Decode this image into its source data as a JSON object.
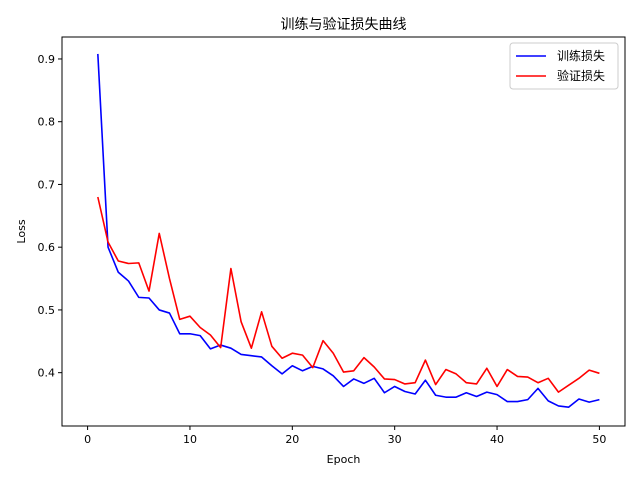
{
  "chart_data": {
    "type": "line",
    "title": "训练与验证损失曲线",
    "xlabel": "Epoch",
    "ylabel": "Loss",
    "xlim": [
      -2.5,
      52.5
    ],
    "ylim": [
      0.315,
      0.935
    ],
    "x_ticks": [
      0,
      10,
      20,
      30,
      40,
      50
    ],
    "y_ticks": [
      0.4,
      0.5,
      0.6,
      0.7,
      0.8,
      0.9
    ],
    "legend_position": "top-right",
    "grid": false,
    "x": [
      1,
      2,
      3,
      4,
      5,
      6,
      7,
      8,
      9,
      10,
      11,
      12,
      13,
      14,
      15,
      16,
      17,
      18,
      19,
      20,
      21,
      22,
      23,
      24,
      25,
      26,
      27,
      28,
      29,
      30,
      31,
      32,
      33,
      34,
      35,
      36,
      37,
      38,
      39,
      40,
      41,
      42,
      43,
      44,
      45,
      46,
      47,
      48,
      49,
      50
    ],
    "series": [
      {
        "name": "训练损失",
        "color": "#0000ff",
        "values": [
          0.908,
          0.6,
          0.56,
          0.546,
          0.52,
          0.519,
          0.5,
          0.495,
          0.462,
          0.462,
          0.459,
          0.438,
          0.444,
          0.439,
          0.429,
          0.427,
          0.425,
          0.411,
          0.398,
          0.411,
          0.403,
          0.41,
          0.406,
          0.395,
          0.378,
          0.39,
          0.383,
          0.391,
          0.368,
          0.378,
          0.37,
          0.366,
          0.388,
          0.364,
          0.361,
          0.361,
          0.368,
          0.362,
          0.369,
          0.365,
          0.354,
          0.354,
          0.357,
          0.375,
          0.355,
          0.347,
          0.345,
          0.358,
          0.353,
          0.357
        ]
      },
      {
        "name": "验证损失",
        "color": "#ff0000",
        "values": [
          0.68,
          0.608,
          0.578,
          0.574,
          0.575,
          0.53,
          0.622,
          0.55,
          0.485,
          0.49,
          0.472,
          0.46,
          0.44,
          0.566,
          0.481,
          0.439,
          0.497,
          0.442,
          0.423,
          0.431,
          0.428,
          0.408,
          0.451,
          0.431,
          0.401,
          0.403,
          0.424,
          0.409,
          0.39,
          0.389,
          0.382,
          0.384,
          0.42,
          0.381,
          0.405,
          0.398,
          0.384,
          0.382,
          0.407,
          0.378,
          0.405,
          0.394,
          0.393,
          0.384,
          0.391,
          0.369,
          0.38,
          0.391,
          0.404,
          0.399
        ]
      }
    ]
  }
}
